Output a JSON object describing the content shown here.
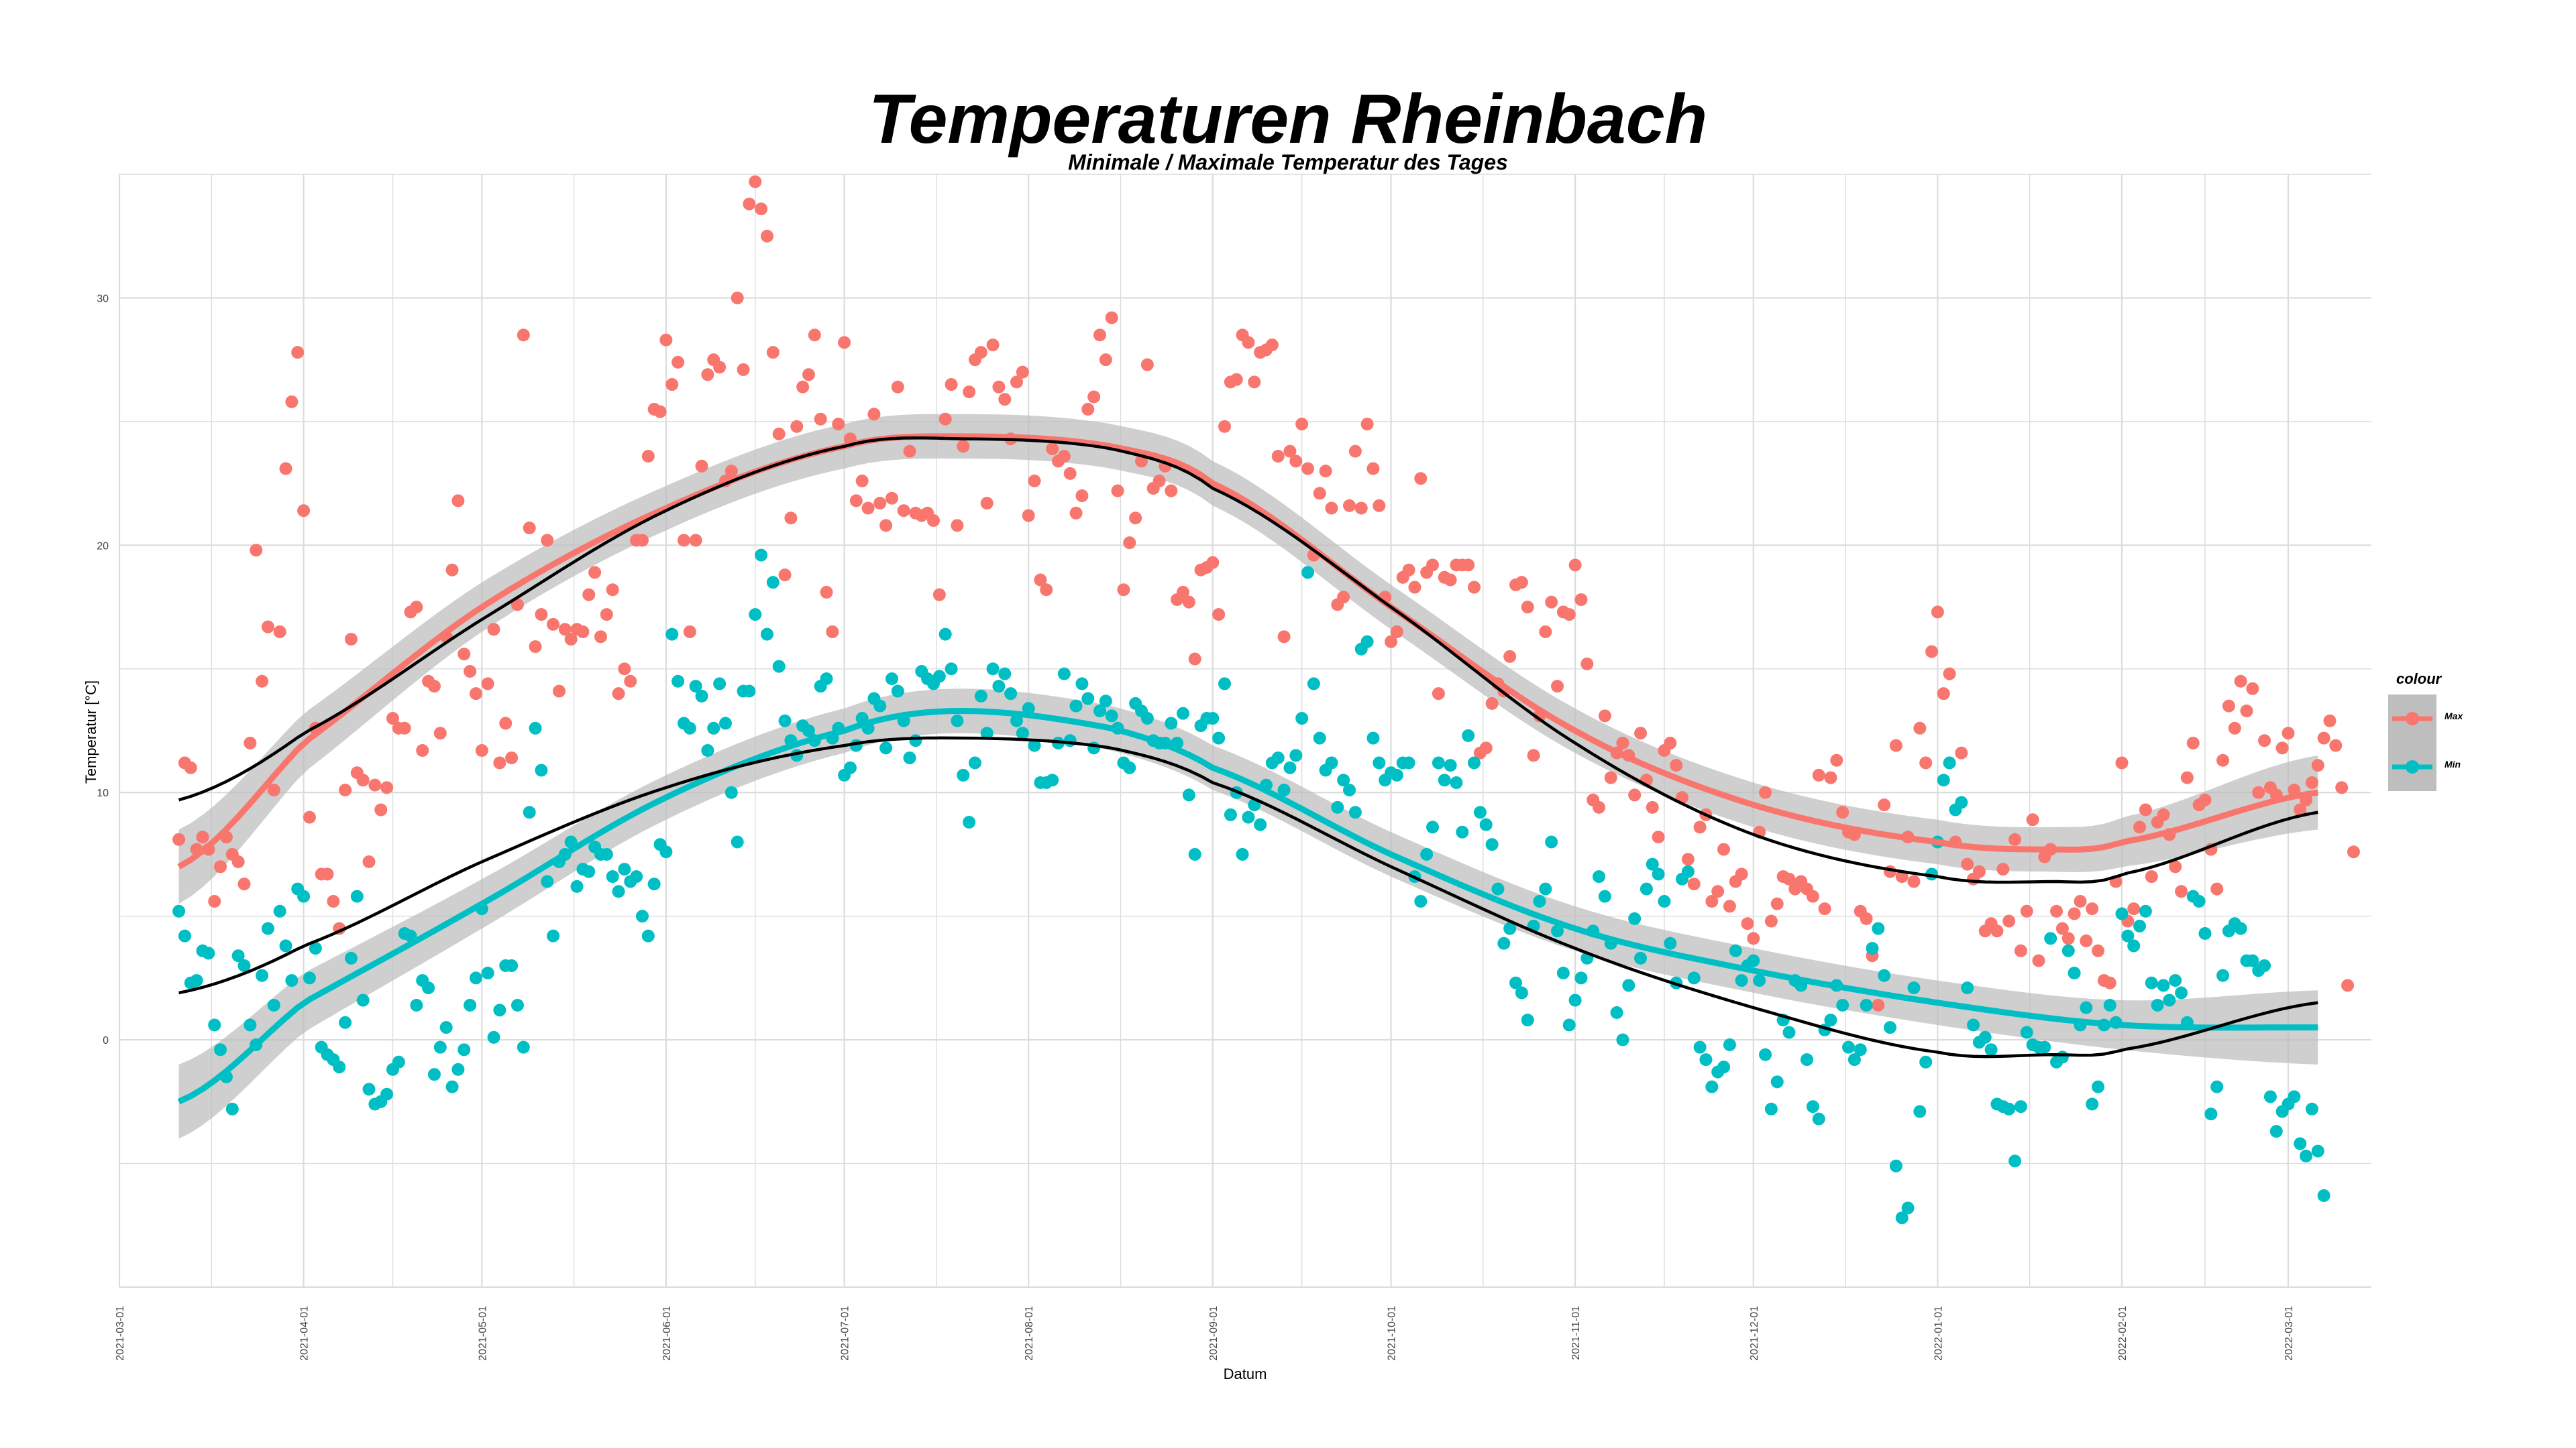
{
  "title": "Temperaturen Rheinbach",
  "subtitle": "Minimale / Maximale Temperatur des Tages",
  "legend": {
    "title": "colour",
    "items": [
      "Max",
      "Min"
    ]
  },
  "colors": {
    "max": "#F8766D",
    "min": "#00BFC4",
    "band": "#bdbdbd",
    "fit": "#000000",
    "grid": "#dcdcdc"
  },
  "chart_data": {
    "type": "scatter",
    "xlabel": "Datum",
    "ylabel": "Temperatur [°C]",
    "x_type": "date",
    "x_range": [
      "2021-03-01",
      "2022-03-15"
    ],
    "ylim": [
      -10,
      35
    ],
    "y_ticks": [
      0,
      10,
      20,
      30
    ],
    "x_ticks": [
      "2021-03-01",
      "2021-04-01",
      "2021-05-01",
      "2021-06-01",
      "2021-07-01",
      "2021-08-01",
      "2021-09-01",
      "2021-10-01",
      "2021-11-01",
      "2021-12-01",
      "2022-01-01",
      "2022-02-01",
      "2022-03-01"
    ],
    "grid": true,
    "legend_position": "right",
    "series": [
      {
        "name": "Max",
        "color": "#F8766D",
        "x_start": "2021-03-11",
        "values": [
          8.1,
          11.2,
          11.0,
          7.7,
          8.2,
          7.7,
          5.6,
          7.0,
          8.2,
          7.5,
          7.2,
          6.3,
          12.0,
          19.8,
          14.5,
          16.7,
          10.1,
          16.5,
          23.1,
          25.8,
          27.8,
          21.4,
          9.0,
          12.6,
          6.7,
          6.7,
          5.6,
          4.5,
          10.1,
          16.2,
          10.8,
          10.5,
          7.2,
          10.3,
          9.3,
          10.2,
          13.0,
          12.6,
          12.6,
          17.3,
          17.5,
          11.7,
          14.5,
          14.3,
          12.4,
          16.3,
          19.0,
          21.8,
          15.6,
          14.9,
          14.0,
          11.7,
          14.4,
          16.6,
          11.2,
          12.8,
          11.4,
          17.6,
          28.5,
          20.7,
          15.9,
          17.2,
          20.2,
          16.8,
          14.1,
          16.6,
          16.2,
          16.6,
          16.5,
          18.0,
          18.9,
          16.3,
          17.2,
          18.2,
          14.0,
          15.0,
          14.5,
          20.2,
          20.2,
          23.6,
          25.5,
          25.4,
          28.3,
          26.5,
          27.4,
          20.2,
          16.5,
          20.2,
          23.2,
          26.9,
          27.5,
          27.2,
          22.6,
          23.0,
          30.0,
          27.1,
          33.8,
          34.7,
          33.6,
          32.5,
          27.8,
          24.5,
          18.8,
          21.1,
          24.8,
          26.4,
          26.9,
          28.5,
          25.1,
          18.1,
          16.5,
          24.9,
          28.2,
          24.3,
          21.8,
          22.6,
          21.5,
          25.3,
          21.7,
          20.8,
          21.9,
          26.4,
          21.4,
          23.8,
          21.3,
          21.2,
          21.3,
          21.0,
          18.0,
          25.1,
          26.5,
          20.8,
          24.0,
          26.2,
          27.5,
          27.8,
          21.7,
          28.1,
          26.4,
          25.9,
          24.3,
          26.6,
          27.0,
          21.2,
          22.6,
          18.6,
          18.2,
          23.9,
          23.4,
          23.6,
          22.9,
          21.3,
          22.0,
          25.5,
          26.0,
          28.5,
          27.5,
          29.2,
          22.2,
          18.2,
          20.1,
          21.1,
          23.4,
          27.3,
          22.3,
          22.6,
          23.2,
          22.2,
          17.8,
          18.1,
          17.7,
          15.4,
          19.0,
          19.1,
          19.3,
          17.2,
          24.8,
          26.6,
          26.7,
          28.5,
          28.2,
          26.6,
          27.8,
          27.9,
          28.1,
          23.6,
          16.3,
          23.8,
          23.4,
          24.9,
          23.1,
          19.6,
          22.1,
          23.0,
          21.5,
          17.6,
          17.9,
          21.6,
          23.8,
          21.5,
          24.9,
          23.1,
          21.6,
          17.9,
          16.1,
          16.5,
          18.7,
          19.0,
          18.3,
          22.7,
          18.9,
          19.2,
          14.0,
          18.7,
          18.6,
          19.2,
          19.2,
          19.2,
          18.3,
          11.6,
          11.8,
          13.6,
          14.4,
          14.1,
          15.5,
          18.4,
          18.5,
          17.5,
          11.5,
          13.1,
          16.5,
          17.7,
          14.3,
          17.3,
          17.2,
          19.2,
          17.8,
          15.2,
          9.7,
          9.4,
          13.1,
          10.6,
          11.6,
          12.0,
          11.5,
          9.9,
          12.4,
          10.5,
          9.4,
          8.2,
          11.7,
          12.0,
          11.1,
          9.8,
          7.3,
          6.3,
          8.6,
          9.1,
          5.6,
          6.0,
          7.7,
          5.4,
          6.4,
          6.7,
          4.7,
          4.1,
          8.4,
          10.0,
          4.8,
          5.5,
          6.6,
          6.5,
          6.1,
          6.4,
          6.1,
          5.8,
          10.7,
          5.3,
          10.6,
          11.3,
          9.2,
          8.4,
          8.3,
          5.2,
          4.9,
          3.4,
          1.4,
          9.5,
          6.8,
          11.9,
          6.6,
          8.2,
          6.4,
          12.6,
          11.2,
          15.7,
          17.3,
          14.0,
          14.8,
          8.0,
          11.6,
          7.1,
          6.5,
          6.8,
          4.4,
          4.7,
          4.4,
          6.9,
          4.8,
          8.1,
          3.6,
          5.2,
          8.9,
          3.2,
          7.4,
          7.7,
          5.2,
          4.5,
          4.1,
          5.1,
          5.6,
          4.0,
          5.3,
          3.6,
          2.4,
          2.3,
          6.4,
          11.2,
          4.8,
          5.3,
          8.6,
          9.3,
          6.6,
          8.8,
          9.1,
          8.3,
          7.0,
          6.0,
          10.6,
          12.0,
          9.5,
          9.7,
          7.7,
          6.1,
          11.3,
          13.5,
          12.6,
          14.5,
          13.3,
          14.2,
          10.0,
          12.1,
          10.2,
          9.9,
          11.8,
          12.4,
          10.1,
          9.3,
          9.7,
          10.4,
          11.1,
          12.2,
          12.9,
          11.9,
          10.2,
          2.2,
          7.6
        ]
      },
      {
        "name": "Min",
        "color": "#00BFC4",
        "x_start": "2021-03-11",
        "values": [
          5.2,
          4.2,
          2.3,
          2.4,
          3.6,
          3.5,
          0.6,
          -0.4,
          -1.5,
          -2.8,
          3.4,
          3.0,
          0.6,
          -0.2,
          2.6,
          4.5,
          1.4,
          5.2,
          3.8,
          2.4,
          6.1,
          5.8,
          2.5,
          3.7,
          -0.3,
          -0.6,
          -0.8,
          -1.1,
          0.7,
          3.3,
          5.8,
          1.6,
          -2.0,
          -2.6,
          -2.5,
          -2.2,
          -1.2,
          -0.9,
          4.3,
          4.2,
          1.4,
          2.4,
          2.1,
          -1.4,
          -0.3,
          0.5,
          -1.9,
          -1.2,
          -0.4,
          1.4,
          2.5,
          5.3,
          2.7,
          0.1,
          1.2,
          3.0,
          3.0,
          1.4,
          -0.3,
          9.2,
          12.6,
          10.9,
          6.4,
          4.2,
          7.2,
          7.5,
          8.0,
          6.2,
          6.9,
          6.8,
          7.8,
          7.5,
          7.5,
          6.6,
          6.0,
          6.9,
          6.4,
          6.6,
          5.0,
          4.2,
          6.3,
          7.9,
          7.6,
          16.4,
          14.5,
          12.8,
          12.6,
          14.3,
          13.9,
          11.7,
          12.6,
          14.4,
          12.8,
          10.0,
          8.0,
          14.1,
          14.1,
          17.2,
          19.6,
          16.4,
          18.5,
          15.1,
          12.9,
          12.1,
          11.5,
          12.7,
          12.5,
          12.1,
          14.3,
          14.6,
          12.2,
          12.6,
          10.7,
          11.0,
          11.9,
          13.0,
          12.6,
          13.8,
          13.5,
          11.8,
          14.6,
          14.1,
          12.9,
          11.4,
          12.1,
          14.9,
          14.6,
          14.4,
          14.7,
          16.4,
          15.0,
          12.9,
          10.7,
          8.8,
          11.2,
          13.9,
          12.4,
          15.0,
          14.3,
          14.8,
          14.0,
          12.9,
          12.4,
          13.4,
          11.9,
          10.4,
          10.4,
          10.5,
          12.0,
          14.8,
          12.1,
          13.5,
          14.4,
          13.8,
          11.8,
          13.3,
          13.7,
          13.1,
          12.6,
          11.2,
          11.0,
          13.6,
          13.3,
          13.0,
          12.1,
          12.0,
          12.0,
          12.8,
          12.0,
          13.2,
          9.9,
          7.5,
          12.7,
          13.0,
          13.0,
          12.2,
          14.4,
          9.1,
          10.0,
          7.5,
          9.0,
          9.5,
          8.7,
          10.3,
          11.2,
          11.4,
          10.1,
          11.0,
          11.5,
          13.0,
          18.9,
          14.4,
          12.2,
          10.9,
          11.2,
          9.4,
          10.5,
          10.1,
          9.2,
          15.8,
          16.1,
          12.2,
          11.2,
          10.5,
          10.8,
          10.7,
          11.2,
          11.2,
          6.6,
          5.6,
          7.5,
          8.6,
          11.2,
          10.5,
          11.1,
          10.4,
          8.4,
          12.3,
          11.2,
          9.2,
          8.7,
          7.9,
          6.1,
          3.9,
          4.5,
          2.3,
          1.9,
          0.8,
          4.6,
          5.6,
          6.1,
          8.0,
          4.4,
          2.7,
          0.6,
          1.6,
          2.5,
          3.3,
          4.4,
          6.6,
          5.8,
          3.9,
          1.1,
          0.0,
          2.2,
          4.9,
          3.3,
          6.1,
          7.1,
          6.7,
          5.6,
          3.9,
          2.3,
          6.5,
          6.8,
          2.5,
          -0.3,
          -0.8,
          -1.9,
          -1.3,
          -1.1,
          -0.2,
          3.6,
          2.4,
          3.0,
          3.2,
          2.4,
          -0.6,
          -2.8,
          -1.7,
          0.8,
          0.3,
          2.4,
          2.2,
          -0.8,
          -2.7,
          -3.2,
          0.4,
          0.8,
          2.2,
          1.4,
          -0.3,
          -0.8,
          -0.4,
          1.4,
          3.7,
          4.5,
          2.6,
          0.5,
          -5.1,
          -7.2,
          -6.8,
          2.1,
          -2.9,
          -0.9,
          6.7,
          8.0,
          10.5,
          11.2,
          9.3,
          9.6,
          2.1,
          0.6,
          -0.1,
          0.1,
          -0.4,
          -2.6,
          -2.7,
          -2.8,
          -4.9,
          -2.7,
          0.3,
          -0.2,
          -0.3,
          -0.3,
          4.1,
          -0.9,
          -0.7,
          3.6,
          2.7,
          0.6,
          1.3,
          -2.6,
          -1.9,
          0.6,
          1.4,
          0.7,
          5.1,
          4.2,
          3.8,
          4.6,
          5.2,
          2.3,
          1.4,
          2.2,
          1.6,
          2.4,
          1.9,
          0.7,
          5.8,
          5.6,
          4.3,
          -3.0,
          -1.9,
          2.6,
          4.4,
          4.7,
          4.5,
          3.2,
          3.2,
          2.8,
          3.0,
          -2.3,
          -3.7,
          -2.9,
          -2.6,
          -2.3,
          -4.2,
          -4.7,
          -2.8,
          -4.5,
          -6.3
        ]
      }
    ],
    "smooth_fits": {
      "loess": [
        {
          "series": "Max",
          "x": [
            "2021-03-11",
            "2021-04-01",
            "2021-05-01",
            "2021-06-01",
            "2021-07-01",
            "2021-07-22",
            "2021-08-15",
            "2021-09-01",
            "2021-10-01",
            "2021-11-01",
            "2021-12-01",
            "2022-01-01",
            "2022-01-20",
            "2022-02-01",
            "2022-03-06"
          ],
          "y": [
            7.0,
            12.0,
            17.5,
            21.5,
            24.0,
            24.4,
            24.0,
            22.5,
            17.5,
            12.5,
            9.5,
            8.0,
            7.7,
            8.0,
            10.0
          ],
          "band": [
            1.5,
            1.2,
            1.0,
            0.9,
            0.9,
            0.9,
            0.9,
            0.9,
            0.9,
            0.9,
            0.9,
            0.9,
            0.9,
            1.0,
            1.5
          ]
        },
        {
          "series": "Min",
          "x": [
            "2021-03-11",
            "2021-04-01",
            "2021-05-01",
            "2021-06-01",
            "2021-07-01",
            "2021-07-20",
            "2021-08-15",
            "2021-09-01",
            "2021-10-01",
            "2021-11-01",
            "2021-12-01",
            "2022-01-01",
            "2022-02-01",
            "2022-03-06"
          ],
          "y": [
            -2.5,
            1.5,
            5.5,
            9.8,
            12.5,
            13.3,
            12.6,
            11.0,
            7.5,
            4.5,
            2.8,
            1.5,
            0.6,
            0.5
          ],
          "band": [
            1.5,
            1.2,
            1.0,
            0.9,
            0.9,
            0.9,
            0.9,
            0.9,
            0.9,
            0.9,
            0.9,
            0.9,
            1.0,
            1.5
          ]
        }
      ],
      "cubic": [
        {
          "series": "Max",
          "x": [
            "2021-03-11",
            "2021-04-01",
            "2021-05-01",
            "2021-06-01",
            "2021-07-01",
            "2021-07-22",
            "2021-08-15",
            "2021-09-01",
            "2021-10-01",
            "2021-11-01",
            "2021-12-01",
            "2022-01-01",
            "2022-01-20",
            "2022-02-01",
            "2022-03-06"
          ],
          "y": [
            9.7,
            12.4,
            17.0,
            21.4,
            24.0,
            24.3,
            23.9,
            22.3,
            17.5,
            12.0,
            8.3,
            6.6,
            6.4,
            6.7,
            9.2
          ]
        },
        {
          "series": "Min",
          "x": [
            "2021-03-11",
            "2021-04-01",
            "2021-05-01",
            "2021-06-01",
            "2021-07-01",
            "2021-07-22",
            "2021-08-15",
            "2021-09-01",
            "2021-10-01",
            "2021-11-01",
            "2021-12-01",
            "2022-01-01",
            "2022-01-20",
            "2022-02-01",
            "2022-03-06"
          ],
          "y": [
            1.9,
            3.8,
            7.2,
            10.2,
            11.9,
            12.2,
            11.8,
            10.4,
            7.0,
            3.7,
            1.3,
            -0.5,
            -0.6,
            -0.4,
            1.5
          ]
        }
      ]
    }
  }
}
